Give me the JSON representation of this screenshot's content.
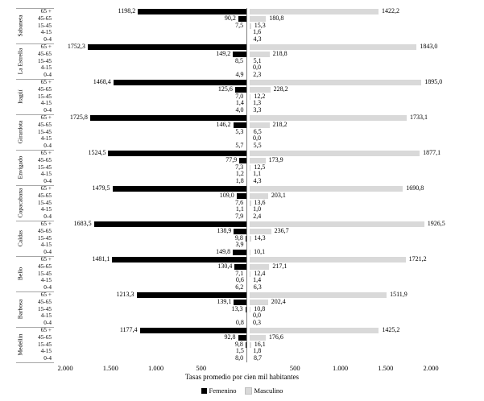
{
  "chart_data": {
    "type": "bar",
    "variant": "horizontal-pyramid",
    "title": "",
    "xlabel": "Tasas promedio por cien mil habitantes",
    "grid": false,
    "legend_position": "bottom",
    "legend": [
      {
        "name": "Femenino",
        "color": "#000000"
      },
      {
        "name": "Masculino",
        "color": "#d9d9d9"
      }
    ],
    "x_axis": {
      "left_ticks": [
        "2.000",
        "1.500",
        "1.000",
        "500"
      ],
      "left_tick_values": [
        2000,
        1500,
        1000,
        500
      ],
      "right_ticks": [
        "500",
        "1.000",
        "1.500",
        "2.000"
      ],
      "right_tick_values": [
        500,
        1000,
        1500,
        2000
      ],
      "xlim_each_side": [
        0,
        2000
      ]
    },
    "age_groups": [
      "65 +",
      "45-65",
      "15-45",
      "4-15",
      "0-4"
    ],
    "municipalities": [
      {
        "name": "Sabaneta",
        "femenino": [
          "1198,2",
          "90,2",
          "7,5",
          "",
          ""
        ],
        "masculino": [
          "1422,2",
          "180,8",
          "15,3",
          "1,6",
          "4,3"
        ]
      },
      {
        "name": "La Estrella",
        "femenino": [
          "1752,3",
          "149,2",
          "8,5",
          "",
          "4,9"
        ],
        "masculino": [
          "1843,0",
          "218,8",
          "5,1",
          "0,0",
          "2,3"
        ]
      },
      {
        "name": "Itagüí",
        "femenino": [
          "1468,4",
          "125,6",
          "7,0",
          "1,4",
          "4,0"
        ],
        "masculino": [
          "1895,0",
          "228,2",
          "12,2",
          "1,3",
          "3,3"
        ]
      },
      {
        "name": "Girardota",
        "femenino": [
          "1725,8",
          "146,2",
          "5,3",
          "",
          "5,7"
        ],
        "masculino": [
          "1733,1",
          "218,2",
          "6,5",
          "0,0",
          "5,5"
        ]
      },
      {
        "name": "Envigado",
        "femenino": [
          "1524,5",
          "77,9",
          "7,3",
          "1,2",
          "1,8"
        ],
        "masculino": [
          "1877,1",
          "173,9",
          "12,5",
          "1,1",
          "4,3"
        ]
      },
      {
        "name": "Copacabana",
        "femenino": [
          "1479,5",
          "109,0",
          "7,6",
          "1,1",
          "7,9"
        ],
        "masculino": [
          "1690,8",
          "203,1",
          "13,6",
          "1,0",
          "2,4"
        ]
      },
      {
        "name": "Caldas",
        "femenino": [
          "1683,5",
          "138,9",
          "9,8",
          "3,9",
          "149,8"
        ],
        "masculino": [
          "1926,5",
          "236,7",
          "14,3",
          "",
          "10,1"
        ]
      },
      {
        "name": "Bello",
        "femenino": [
          "1481,1",
          "130,4",
          "7,1",
          "0,6",
          "6,2"
        ],
        "masculino": [
          "1721,2",
          "217,1",
          "12,4",
          "1,4",
          "6,3"
        ]
      },
      {
        "name": "Barbosa",
        "femenino": [
          "1213,3",
          "139,1",
          "13,3",
          "",
          "0,8"
        ],
        "masculino": [
          "1511,9",
          "202,4",
          "10,8",
          "0,0",
          "0,3"
        ]
      },
      {
        "name": "Medellín",
        "femenino": [
          "1177,4",
          "92,8",
          "9,8",
          "1,5",
          "8,0"
        ],
        "masculino": [
          "1425,2",
          "176,6",
          "16,1",
          "1,8",
          "8,7"
        ]
      }
    ]
  }
}
